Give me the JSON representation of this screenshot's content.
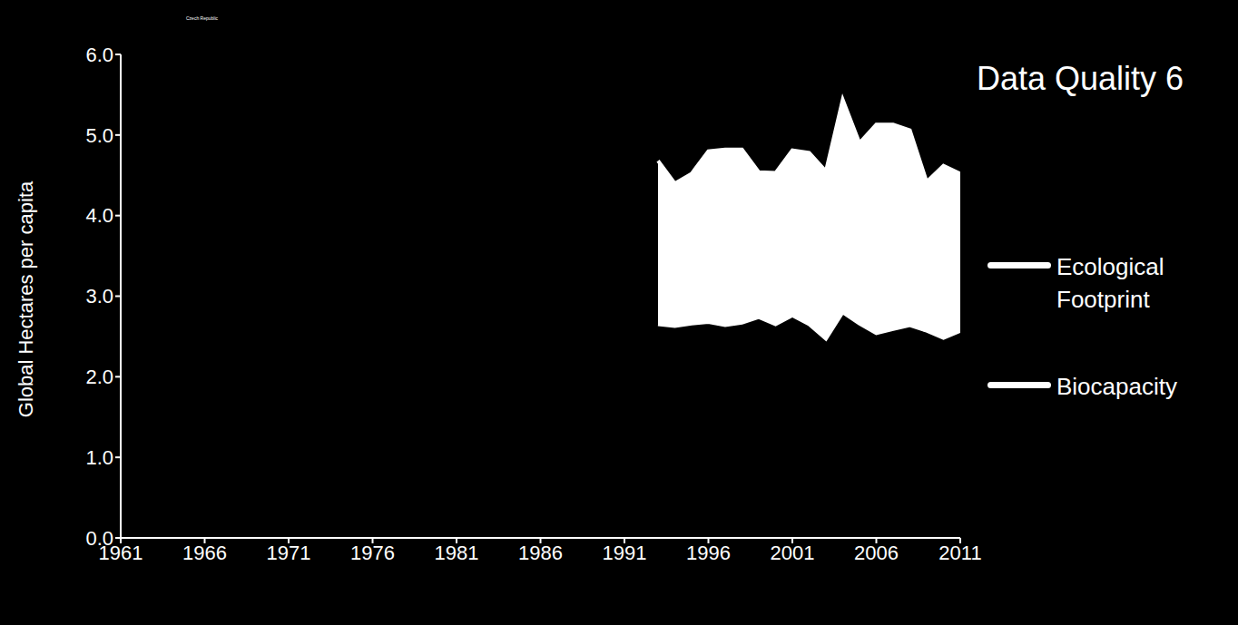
{
  "chart_data": {
    "type": "area",
    "title": "Czech Republic",
    "annotation": "Data Quality 6",
    "y_label": "Global Hectares per capita",
    "x": [
      1993,
      1994,
      1995,
      1996,
      1997,
      1998,
      1999,
      2000,
      2001,
      2002,
      2003,
      2004,
      2005,
      2006,
      2007,
      2008,
      2009,
      2010,
      2011
    ],
    "series": [
      {
        "name": "Ecological Footprint",
        "color": "#ffffff",
        "values": [
          4.68,
          4.4,
          4.52,
          4.8,
          4.82,
          4.82,
          4.54,
          4.53,
          4.81,
          4.78,
          4.55,
          5.44,
          4.9,
          5.13,
          5.13,
          5.06,
          4.42,
          4.62,
          4.52
        ]
      },
      {
        "name": "Biocapacity",
        "color": "#ffffff",
        "values": [
          2.65,
          2.63,
          2.66,
          2.68,
          2.64,
          2.67,
          2.74,
          2.65,
          2.76,
          2.65,
          2.47,
          2.8,
          2.66,
          2.54,
          2.59,
          2.64,
          2.57,
          2.48,
          2.57
        ]
      }
    ],
    "xlim": [
      1961,
      2011
    ],
    "xticks": [
      1961,
      1966,
      1971,
      1976,
      1981,
      1986,
      1991,
      1996,
      2001,
      2006,
      2011
    ],
    "ylim": [
      0,
      6
    ],
    "yticks": [
      {
        "value": 0,
        "label": "0.0"
      },
      {
        "value": 1,
        "label": "1.0"
      },
      {
        "value": 2,
        "label": "2.0"
      },
      {
        "value": 3,
        "label": "3.0"
      },
      {
        "value": 4,
        "label": "4.0"
      },
      {
        "value": 5,
        "label": "5.0"
      },
      {
        "value": 6,
        "label": "6.0"
      }
    ],
    "grid": false,
    "legend": "right"
  }
}
